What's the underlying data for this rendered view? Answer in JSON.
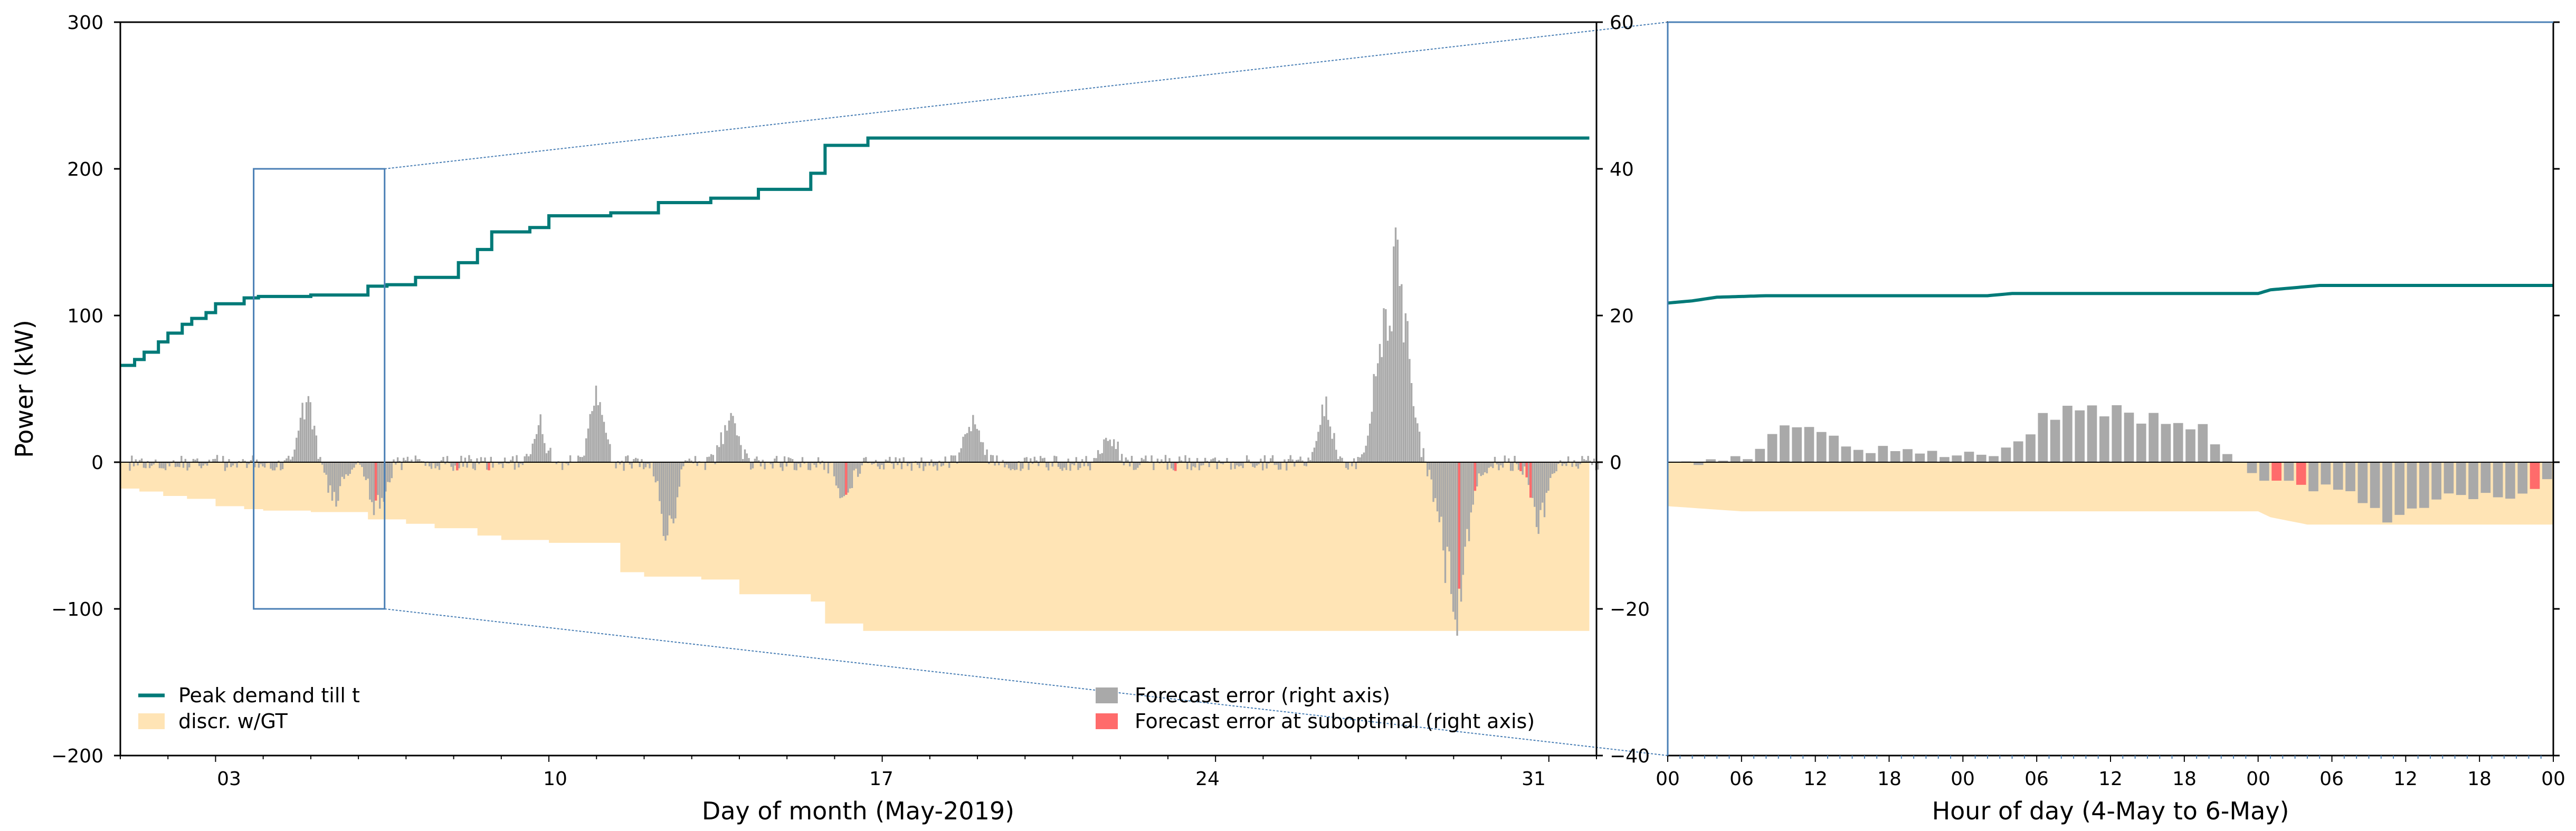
{
  "colors": {
    "peak_line": "#007a78",
    "discr_fill": "#ffe4b5",
    "forecast_error": "#a9a9a9",
    "forecast_error_subopt": "#ff6b6b",
    "zoom_box": "#4a7fb5"
  },
  "chart_data": [
    {
      "type": "bar+line",
      "title": "",
      "xlabel": "Day of month (May-2019)",
      "ylabel": "Power (kW)",
      "ylabel_right": "",
      "xlim_days": [
        1,
        32
      ],
      "ylim": [
        -200,
        300
      ],
      "ylim_right": [
        -40,
        60
      ],
      "yticks": [
        "300",
        "200",
        "100",
        "0",
        "−100",
        "−200"
      ],
      "yticks_right": [
        "60",
        "40",
        "20",
        "0",
        "−20",
        "−40"
      ],
      "xticks": [
        "03",
        "10",
        "17",
        "24",
        "31"
      ],
      "zoom_window": {
        "x": [
          "4-May",
          "6-May"
        ],
        "y": [
          -100,
          200
        ]
      },
      "legend": [
        {
          "label": "Peak demand till t",
          "kind": "line"
        },
        {
          "label": "discr. w/GT",
          "kind": "patch"
        },
        {
          "label": "Forecast error (right axis)",
          "kind": "patch"
        },
        {
          "label": "Forecast error at suboptimal (right axis)",
          "kind": "patch"
        }
      ],
      "series": [
        {
          "name": "Peak demand till t",
          "axis": "left",
          "x_day": [
            1.0,
            1.3,
            1.5,
            1.8,
            2.0,
            2.3,
            2.5,
            2.8,
            3.0,
            3.4,
            3.6,
            3.9,
            5.0,
            6.2,
            6.6,
            7.2,
            8.1,
            8.5,
            8.8,
            9.6,
            10.0,
            11.3,
            12.3,
            13.4,
            14.4,
            15.5,
            15.8,
            16.7
          ],
          "values": [
            66,
            70,
            75,
            82,
            88,
            94,
            98,
            102,
            108,
            108,
            112,
            113,
            114,
            120,
            121,
            126,
            136,
            145,
            157,
            160,
            168,
            170,
            177,
            180,
            186,
            197,
            216,
            221
          ]
        },
        {
          "name": "discr. w/GT",
          "axis": "left",
          "x_day": [
            1.0,
            1.4,
            1.9,
            2.4,
            3.0,
            3.6,
            4.0,
            5.0,
            6.2,
            7.0,
            7.6,
            8.5,
            9.0,
            10.0,
            11.5,
            12.0,
            13.2,
            14.0,
            15.5,
            15.8,
            16.6,
            32.0
          ],
          "values": [
            -18,
            -20,
            -23,
            -25,
            -30,
            -32,
            -33,
            -34,
            -39,
            -42,
            -45,
            -50,
            -53,
            -55,
            -75,
            -78,
            -80,
            -90,
            -95,
            -110,
            -115,
            -115
          ]
        },
        {
          "name": "Forecast error (right axis)",
          "axis": "right",
          "bursts": [
            {
              "day": 4.9,
              "value": 9
            },
            {
              "day": 5.5,
              "value": -6
            },
            {
              "day": 6.4,
              "value": -8
            },
            {
              "day": 9.8,
              "value": 6
            },
            {
              "day": 11.0,
              "value": 11
            },
            {
              "day": 12.5,
              "value": -13
            },
            {
              "day": 13.8,
              "value": 8
            },
            {
              "day": 16.2,
              "value": -6
            },
            {
              "day": 18.9,
              "value": 7
            },
            {
              "day": 21.8,
              "value": 4
            },
            {
              "day": 26.3,
              "value": 9
            },
            {
              "day": 27.4,
              "value": 7
            },
            {
              "day": 27.8,
              "value": 33
            },
            {
              "day": 29.0,
              "value": -24
            },
            {
              "day": 30.8,
              "value": -11
            }
          ]
        }
      ]
    },
    {
      "type": "bar+line",
      "title": "",
      "xlabel": "Hour of day (4-May to 6-May)",
      "ylim": [
        -40,
        60
      ],
      "xticks": [
        "00",
        "06",
        "12",
        "18",
        "00",
        "06",
        "12",
        "18",
        "00",
        "06",
        "12",
        "18",
        "00"
      ],
      "series": [
        {
          "name": "Peak demand till t",
          "axis": "right",
          "x_hour": [
            0,
            2,
            4,
            8,
            26,
            28,
            40,
            48,
            49,
            51,
            53,
            72
          ],
          "values": [
            21.7,
            22.0,
            22.5,
            22.7,
            22.7,
            23.0,
            23.0,
            23.0,
            23.5,
            23.8,
            24.1,
            24.1
          ]
        },
        {
          "name": "discr. w/GT",
          "axis": "right",
          "x_hour": [
            0,
            6,
            48,
            49,
            52,
            72
          ],
          "values": [
            -6.0,
            -6.7,
            -6.7,
            -7.5,
            -8.5,
            -8.5
          ]
        },
        {
          "name": "Forecast error (right axis)",
          "axis": "right",
          "bursts": [
            {
              "hour": 11.0,
              "value": 7
            },
            {
              "hour": 17.5,
              "value": 2
            },
            {
              "hour": 22.5,
              "value": 1.5
            },
            {
              "hour": 31.5,
              "value": 9
            },
            {
              "hour": 37.0,
              "value": 8
            },
            {
              "hour": 42.0,
              "value": 6
            },
            {
              "hour": 50.0,
              "value": -3
            },
            {
              "hour": 54.0,
              "value": -3
            },
            {
              "hour": 59.0,
              "value": -9
            },
            {
              "hour": 65.0,
              "value": -6
            },
            {
              "hour": 70.0,
              "value": -4
            }
          ]
        }
      ]
    }
  ]
}
